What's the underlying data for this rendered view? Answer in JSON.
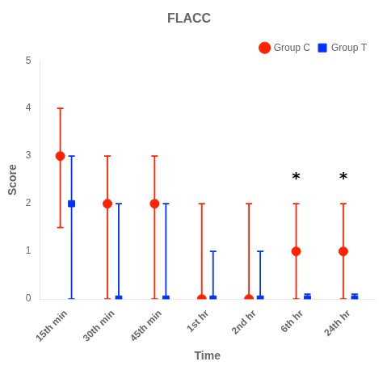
{
  "chart_data": {
    "type": "errorbar",
    "title": "FLACC",
    "xlabel": "Time",
    "ylabel": "Score",
    "categories": [
      "15th min",
      "30th min",
      "45th min",
      "1st hr",
      "2nd hr",
      "6th hr",
      "24th hr"
    ],
    "series": [
      {
        "name": "Group C",
        "color": "#FF2200",
        "marker": "circle",
        "values": [
          3.0,
          2.0,
          2.0,
          0.0,
          0.0,
          1.0,
          1.0
        ],
        "err_low": [
          1.5,
          2.0,
          2.0,
          0.0,
          0.0,
          1.0,
          1.0
        ],
        "err_high": [
          1.0,
          1.0,
          1.0,
          2.0,
          2.0,
          1.0,
          1.0
        ]
      },
      {
        "name": "Group T",
        "color": "#0033FF",
        "marker": "square",
        "values": [
          2.0,
          0.0,
          0.0,
          0.0,
          0.0,
          0.0,
          0.0
        ],
        "err_low": [
          2.0,
          0.0,
          0.0,
          0.0,
          0.0,
          0.0,
          0.0
        ],
        "err_high": [
          1.0,
          2.0,
          2.0,
          1.0,
          1.0,
          0.1,
          0.1
        ]
      }
    ],
    "annotations": [
      {
        "text": "*",
        "x": "6th hr",
        "y": 2.45,
        "series": "Group C"
      },
      {
        "text": "*",
        "x": "24th hr",
        "y": 2.45,
        "series": "Group C"
      }
    ],
    "ylim": [
      0,
      5
    ],
    "yticks": [
      0,
      1,
      2,
      3,
      4,
      5
    ],
    "grid": false,
    "legend": "upper right"
  }
}
